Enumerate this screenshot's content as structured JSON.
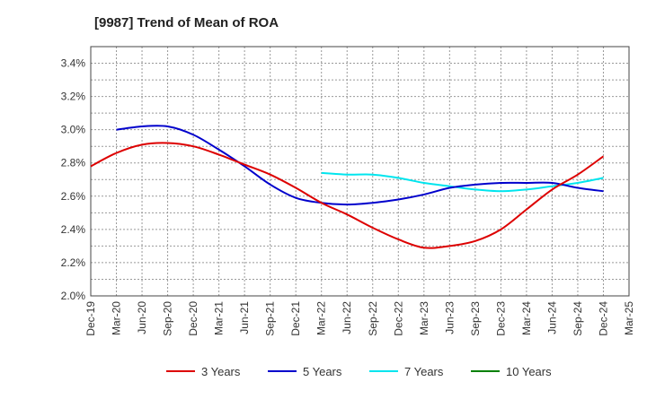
{
  "chart_data": {
    "type": "line",
    "title": "[9987]  Trend of Mean of ROA",
    "xlabel": "",
    "ylabel": "",
    "x": [
      "Dec-19",
      "Mar-20",
      "Jun-20",
      "Sep-20",
      "Dec-20",
      "Mar-21",
      "Jun-21",
      "Sep-21",
      "Dec-21",
      "Mar-22",
      "Jun-22",
      "Sep-22",
      "Dec-22",
      "Mar-23",
      "Jun-23",
      "Sep-23",
      "Dec-23",
      "Mar-24",
      "Jun-24",
      "Sep-24",
      "Dec-24",
      "Mar-25"
    ],
    "ylim": [
      2.0,
      3.5
    ],
    "yticks": [
      2.0,
      2.2,
      2.4,
      2.6,
      2.8,
      3.0,
      3.2,
      3.4
    ],
    "ytick_labels": [
      "2.0%",
      "2.2%",
      "2.4%",
      "2.6%",
      "2.8%",
      "3.0%",
      "3.2%",
      "3.4%"
    ],
    "grid": true,
    "legend_position": "bottom",
    "series": [
      {
        "name": "3 Years",
        "color": "#dd0000",
        "values": [
          2.78,
          2.86,
          2.91,
          2.92,
          2.9,
          2.85,
          2.79,
          2.73,
          2.65,
          2.56,
          2.49,
          2.41,
          2.34,
          2.29,
          2.3,
          2.33,
          2.4,
          2.52,
          2.64,
          2.73,
          2.84,
          null
        ]
      },
      {
        "name": "5 Years",
        "color": "#0000cc",
        "values": [
          null,
          3.0,
          3.02,
          3.02,
          2.97,
          2.88,
          2.78,
          2.67,
          2.59,
          2.56,
          2.55,
          2.56,
          2.58,
          2.61,
          2.65,
          2.67,
          2.68,
          2.68,
          2.68,
          2.65,
          2.63,
          null
        ]
      },
      {
        "name": "7 Years",
        "color": "#00e5ee",
        "values": [
          null,
          null,
          null,
          null,
          null,
          null,
          null,
          null,
          null,
          2.74,
          2.73,
          2.73,
          2.71,
          2.68,
          2.66,
          2.64,
          2.63,
          2.64,
          2.66,
          2.68,
          2.71,
          null
        ]
      },
      {
        "name": "10 Years",
        "color": "#008000",
        "values": [
          null,
          null,
          null,
          null,
          null,
          null,
          null,
          null,
          null,
          null,
          null,
          null,
          null,
          null,
          null,
          null,
          null,
          null,
          null,
          null,
          null,
          null
        ]
      }
    ]
  }
}
